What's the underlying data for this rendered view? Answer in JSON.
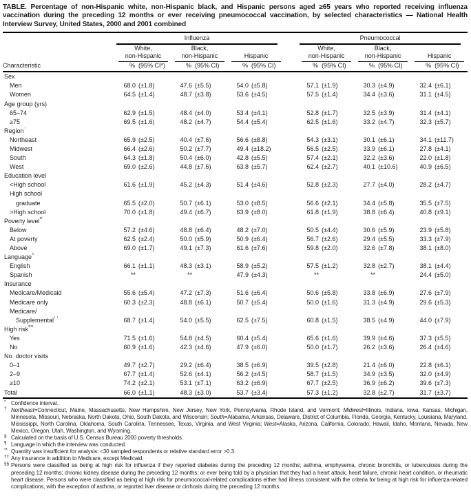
{
  "title": "TABLE. Percentage of non-Hispanic white, non-Hispanic black, and Hispanic persons aged ≥65 years who reported receiving influenza vaccination during the preceding 12 months or ever receiving pneumococcal vaccination, by selected characteristics — National Health Interview Survey, United States, 2000 and 2001 combined",
  "header": {
    "characteristic": "Characteristic",
    "groups": [
      "Influenza",
      "Pneumococcal"
    ],
    "subgroups": [
      {
        "l1": "White,",
        "l2": "non-Hispanic"
      },
      {
        "l1": "Black,",
        "l2": "non-Hispanic"
      },
      {
        "l1": "",
        "l2": "Hispanic"
      }
    ],
    "pct_symbol": "%",
    "ci_labels": [
      "(95% CI*)",
      "(95% CI)",
      "(95% CI)",
      "(95% CI)",
      "(95% CI)",
      "(95% CI)"
    ]
  },
  "table": {
    "rows": [
      {
        "label": "Sex",
        "indent": 0
      },
      {
        "label": "Men",
        "indent": 1,
        "cells": [
          [
            "68.0",
            "(±1.8)"
          ],
          [
            "47.6",
            "(±5.5)"
          ],
          [
            "54.0",
            "(±5.8)"
          ],
          [
            "57.1",
            "(±1.9)"
          ],
          [
            "30.3",
            "(±4.9)"
          ],
          [
            "32.4",
            "(±6.1)"
          ]
        ]
      },
      {
        "label": "Women",
        "indent": 1,
        "cells": [
          [
            "64.5",
            "(±1.4)"
          ],
          [
            "48.7",
            "(±3.8)"
          ],
          [
            "53.6",
            "(±4.5)"
          ],
          [
            "57.5",
            "(±1.4)"
          ],
          [
            "34.4",
            "(±3.6)"
          ],
          [
            "31.1",
            "(±4.5)"
          ]
        ]
      },
      {
        "label": "Age group (yrs)",
        "indent": 0
      },
      {
        "label": "65–74",
        "indent": 1,
        "cells": [
          [
            "62.9",
            "(±1.5)"
          ],
          [
            "48.4",
            "(±4.0)"
          ],
          [
            "53.4",
            "(±4.1)"
          ],
          [
            "52.8",
            "(±1.7)"
          ],
          [
            "32.5",
            "(±3.9)"
          ],
          [
            "31.4",
            "(±4.1)"
          ]
        ]
      },
      {
        "label": "≥75",
        "indent": 1,
        "cells": [
          [
            "69.5",
            "(±1.6)"
          ],
          [
            "48.2",
            "(±4.7)"
          ],
          [
            "54.4",
            "(±5.4)"
          ],
          [
            "62.5",
            "(±1.6)"
          ],
          [
            "33.2",
            "(±4.7)"
          ],
          [
            "32.3",
            "(±5.7)"
          ]
        ]
      },
      {
        "label": "Region",
        "sup": "†",
        "indent": 0
      },
      {
        "label": "Northeast",
        "indent": 1,
        "cells": [
          [
            "65.9",
            "(±2.5)"
          ],
          [
            "40.4",
            "(±7.6)"
          ],
          [
            "56.6",
            "(±8.8)"
          ],
          [
            "54.3",
            "(±3.1)"
          ],
          [
            "30.1",
            "(±6.1)"
          ],
          [
            "34.1",
            "(±11.7)"
          ]
        ]
      },
      {
        "label": "Midwest",
        "indent": 1,
        "cells": [
          [
            "66.4",
            "(±2.6)"
          ],
          [
            "50.2",
            "(±7.7)"
          ],
          [
            "49.4",
            "(±18.2)"
          ],
          [
            "56.5",
            "(±2.5)"
          ],
          [
            "33.9",
            "(±6.1)"
          ],
          [
            "27.8",
            "(±4.1)"
          ]
        ]
      },
      {
        "label": "South",
        "indent": 1,
        "cells": [
          [
            "64.3",
            "(±1.8)"
          ],
          [
            "50.4",
            "(±6.0)"
          ],
          [
            "42.8",
            "(±5.5)"
          ],
          [
            "57.4",
            "(±2.1)"
          ],
          [
            "32.2",
            "(±3.6)"
          ],
          [
            "22.0",
            "(±1.8)"
          ]
        ]
      },
      {
        "label": "West",
        "indent": 1,
        "cells": [
          [
            "69.0",
            "(±2.6)"
          ],
          [
            "44.8",
            "(±7.6)"
          ],
          [
            "63.8",
            "(±5.7)"
          ],
          [
            "62.4",
            "(±2.7)"
          ],
          [
            "40.1",
            "(±10.6)"
          ],
          [
            "40.9",
            "(±6.5)"
          ]
        ]
      },
      {
        "label": "Education level",
        "indent": 0
      },
      {
        "label": "<High school",
        "indent": 1,
        "cells": [
          [
            "61.6",
            "(±1.9)"
          ],
          [
            "45.2",
            "(±4.3)"
          ],
          [
            "51.4",
            "(±4.6)"
          ],
          [
            "52.8",
            "(±2.3)"
          ],
          [
            "27.7",
            "(±4.0)"
          ],
          [
            "28.2",
            "(±4.7)"
          ]
        ]
      },
      {
        "label": "High school",
        "indent": 1
      },
      {
        "label": "graduate",
        "indent": 2,
        "cells": [
          [
            "65.5",
            "(±2.0)"
          ],
          [
            "50.7",
            "(±6.1)"
          ],
          [
            "53.0",
            "(±8.5)"
          ],
          [
            "56.6",
            "(±2.1)"
          ],
          [
            "34.4",
            "(±5.8)"
          ],
          [
            "35.5",
            "(±7.5)"
          ]
        ]
      },
      {
        "label": ">High school",
        "indent": 1,
        "cells": [
          [
            "70.0",
            "(±1.8)"
          ],
          [
            "49.4",
            "(±6.7)"
          ],
          [
            "63.9",
            "(±8.0)"
          ],
          [
            "61.8",
            "(±1.9)"
          ],
          [
            "38.8",
            "(±6.4)"
          ],
          [
            "40.8",
            "(±9.1)"
          ]
        ]
      },
      {
        "label": "Poverty level",
        "sup": "§",
        "indent": 0
      },
      {
        "label": "Below",
        "indent": 1,
        "cells": [
          [
            "57.2",
            "(±4.6)"
          ],
          [
            "48.8",
            "(±6.4)"
          ],
          [
            "48.2",
            "(±7.0)"
          ],
          [
            "50.5",
            "(±4.4)"
          ],
          [
            "30.6",
            "(±5.9)"
          ],
          [
            "23.9",
            "(±5.8)"
          ]
        ]
      },
      {
        "label": "At poverty",
        "indent": 1,
        "cells": [
          [
            "62.5",
            "(±2.4)"
          ],
          [
            "50.0",
            "(±5.9)"
          ],
          [
            "50.9",
            "(±6.4)"
          ],
          [
            "56.7",
            "(±2.6)"
          ],
          [
            "29.4",
            "(±5.5)"
          ],
          [
            "33.3",
            "(±7.9)"
          ]
        ]
      },
      {
        "label": "Above",
        "indent": 1,
        "cells": [
          [
            "69.0",
            "(±1.7)"
          ],
          [
            "49.1",
            "(±7.3)"
          ],
          [
            "61.6",
            "(±7.6)"
          ],
          [
            "59.8",
            "(±2.0)"
          ],
          [
            "32.6",
            "(±7.8)"
          ],
          [
            "38.1",
            "(±8.0)"
          ]
        ]
      },
      {
        "label": "Language",
        "sup": "¶",
        "indent": 0
      },
      {
        "label": "English",
        "indent": 1,
        "cells": [
          [
            "66.1",
            "(±1.1)"
          ],
          [
            "48.3",
            "(±3.1)"
          ],
          [
            "58.9",
            "(±5.2)"
          ],
          [
            "57.5",
            "(±1.2)"
          ],
          [
            "32.8",
            "(±2.7)"
          ],
          [
            "38.1",
            "(±4.4)"
          ]
        ]
      },
      {
        "label": "Spanish",
        "indent": 1,
        "cells": [
          [
            "**",
            ""
          ],
          [
            "**",
            ""
          ],
          [
            "47.9",
            "(±4.3)"
          ],
          [
            "**",
            ""
          ],
          [
            "**",
            ""
          ],
          [
            "24.4",
            "(±5.0)"
          ]
        ]
      },
      {
        "label": "Insurance",
        "indent": 0
      },
      {
        "label": "Medicare/Medicaid",
        "indent": 1,
        "cells": [
          [
            "55.6",
            "(±5.4)"
          ],
          [
            "47.2",
            "(±7.3)"
          ],
          [
            "51.6",
            "(±6.4)"
          ],
          [
            "50.6",
            "(±5.8)"
          ],
          [
            "33.8",
            "(±6.9)"
          ],
          [
            "27.6",
            "(±7.9)"
          ]
        ]
      },
      {
        "label": "Medicare only",
        "indent": 1,
        "cells": [
          [
            "60.3",
            "(±2.3)"
          ],
          [
            "48.8",
            "(±6.1)"
          ],
          [
            "50.7",
            "(±5.4)"
          ],
          [
            "50.0",
            "(±1.6)"
          ],
          [
            "31.3",
            "(±4.9)"
          ],
          [
            "29.6",
            "(±5.3)"
          ]
        ]
      },
      {
        "label": "Medicare/",
        "indent": 1
      },
      {
        "label": "Supplemental",
        "sup": "††",
        "indent": 2,
        "cells": [
          [
            "68.7",
            "(±1.4)"
          ],
          [
            "54.0",
            "(±5.5)"
          ],
          [
            "62.5",
            "(±7.5)"
          ],
          [
            "60.8",
            "(±1.5)"
          ],
          [
            "38.5",
            "(±4.9)"
          ],
          [
            "44.0",
            "(±7.9)"
          ]
        ]
      },
      {
        "label": "High risk",
        "sup": "§§",
        "indent": 0
      },
      {
        "label": "Yes",
        "indent": 1,
        "cells": [
          [
            "71.5",
            "(±1.6)"
          ],
          [
            "54.8",
            "(±4.5)"
          ],
          [
            "60.4",
            "(±5.4)"
          ],
          [
            "65.6",
            "(±1.6)"
          ],
          [
            "39.9",
            "(±4.6)"
          ],
          [
            "37.3",
            "(±5.5)"
          ]
        ]
      },
      {
        "label": "No",
        "indent": 1,
        "cells": [
          [
            "60.9",
            "(±1.6)"
          ],
          [
            "42.3",
            "(±4.6)"
          ],
          [
            "47.9",
            "(±6.0)"
          ],
          [
            "50.0",
            "(±1.7)"
          ],
          [
            "26.2",
            "(±3.6)"
          ],
          [
            "26.4",
            "(±4.6)"
          ]
        ]
      },
      {
        "label": "No. doctor visits",
        "indent": 0
      },
      {
        "label": "0–1",
        "indent": 1,
        "cells": [
          [
            "49.7",
            "(±2.7)"
          ],
          [
            "29.2",
            "(±6.4)"
          ],
          [
            "38.5",
            "(±6.9)"
          ],
          [
            "39.5",
            "(±2.8)"
          ],
          [
            "21.4",
            "(±6.0)"
          ],
          [
            "22.8",
            "(±6.1)"
          ]
        ]
      },
      {
        "label": "2–9",
        "indent": 1,
        "cells": [
          [
            "67.7",
            "(±1.4)"
          ],
          [
            "52.6",
            "(±4.1)"
          ],
          [
            "56.2",
            "(±4.5)"
          ],
          [
            "58.7",
            "(±1.5)"
          ],
          [
            "34.9",
            "(±3.5)"
          ],
          [
            "32.0",
            "(±4.9)"
          ]
        ]
      },
      {
        "label": "≥10",
        "indent": 1,
        "cells": [
          [
            "74.2",
            "(±2.1)"
          ],
          [
            "53.1",
            "(±7.1)"
          ],
          [
            "63.2",
            "(±6.9)"
          ],
          [
            "67.7",
            "(±2.5)"
          ],
          [
            "36.9",
            "(±6.2)"
          ],
          [
            "39.6",
            "(±7.3)"
          ]
        ]
      },
      {
        "label": "Total",
        "indent": 0,
        "cells": [
          [
            "66.0",
            "(±1.1)"
          ],
          [
            "48.3",
            "(±3.0)"
          ],
          [
            "53.7",
            "(±3.4)"
          ],
          [
            "57.3",
            "(±1.2)"
          ],
          [
            "32.8",
            "(±2.7)"
          ],
          [
            "31.7",
            "(±3.7)"
          ]
        ]
      }
    ]
  },
  "footnotes": [
    {
      "mark": "*",
      "text": "Confidence interval."
    },
    {
      "mark": "†",
      "text": "Northeast=Connecticut, Maine, Massachusetts, New Hampshire, New Jersey, New York, Pennsylvania, Rhode Island, and Vermont; Midwest=Illinois, Indiana, Iowa, Kansas, Michigan, Minnesota, Missouri, Nebraska, North Dakota, Ohio, South Dakota, and Wisconsin; South=Alabama, Arkansas, Delaware, District of Columbia, Florida, Georgia, Kentucky, Louisiana, Maryland, Mississippi, North Carolina, Oklahoma, South Carolina, Tennessee, Texas, Virginia, and West Virginia; West=Alaska, Arizona, California, Colorado, Hawaii, Idaho, Montana, Nevada, New Mexico, Oregon, Utah, Washington, and Wyoming."
    },
    {
      "mark": "§",
      "text": "Calculated on the basis of U.S. Census Bureau 2000 poverty thresholds."
    },
    {
      "mark": "¶",
      "text": "Language in which the interview was conducted."
    },
    {
      "mark": "**",
      "text": "Quantity was insufficient for analysis: <30 sampled respondents or relative standard error >0.3."
    },
    {
      "mark": "††",
      "text": "Any insurance in addition to Medicare, except Medicaid."
    },
    {
      "mark": "§§",
      "text": "Persons were classified as being at high risk for influenza if they reported diabetes during the preceding 12 months; asthma, emphysema, chronic bronchitis, or tuberculosis during the preceding 12 months; chronic kidney disease during the preceding 12 months; or ever being told by a physician that they had a heart attack, heart failure, chronic heart condition, or rheumatic heart disease. Persons who were classified as being at high risk for pneumococcal-related complications either had illness consistent with the criteria for being at high risk for influenza-related complications, with the exception of asthma, or reported liver disease or cirrhosis during the preceding 12 months."
    }
  ]
}
